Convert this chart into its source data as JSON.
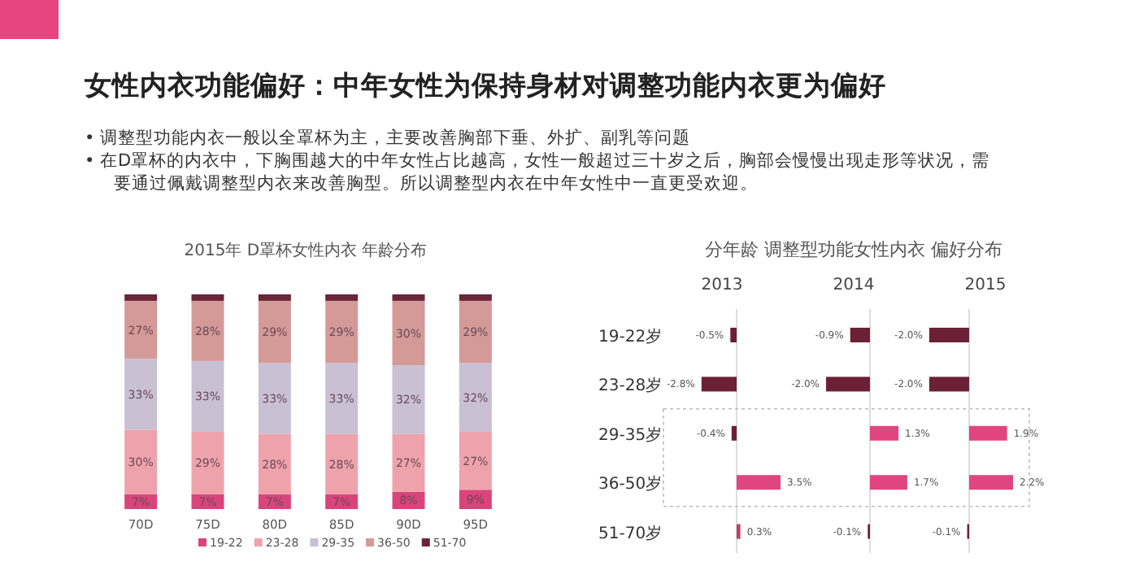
{
  "chart_data": [
    {
      "type": "other",
      "title": "女性内衣功能偏好：中年女性为保持身材对调整功能内衣更为偏好",
      "annotations": [
        "• 调整型功能内衣一般以全罩杯为主，主要改善胸部下垂、外扩、副乳等问题",
        "• 在D罩杯的内衣中，下胸围越大的中年女性占比越高，女性一般超过三十岁之后，胸部会慢慢出现走形等状况，需要通过佩戴调整型内衣来改善胸型。所以调整型内衣在中年女性中一直更受欢迎。"
      ]
    },
    {
      "type": "bar",
      "stacked": true,
      "title": "2015年 D罩杯女性内衣 年龄分布",
      "categories": [
        "70D",
        "75D",
        "80D",
        "85D",
        "90D",
        "95D"
      ],
      "legend": "bottom",
      "tick_labels": "x",
      "series": [
        {
          "name": "19-22",
          "color": "#d9457a",
          "values": [
            7,
            7,
            7,
            7,
            8,
            9
          ],
          "value_labels": [
            "7%",
            "7%",
            "7%",
            "7%",
            "8%",
            "9%"
          ]
        },
        {
          "name": "23-28",
          "color": "#eea3ac",
          "values": [
            30,
            29,
            28,
            28,
            27,
            27
          ],
          "value_labels": [
            "30%",
            "29%",
            "28%",
            "28%",
            "27%",
            "27%"
          ]
        },
        {
          "name": "29-35",
          "color": "#c9c0d3",
          "values": [
            33,
            33,
            33,
            33,
            32,
            32
          ],
          "value_labels": [
            "33%",
            "33%",
            "33%",
            "33%",
            "32%",
            "32%"
          ]
        },
        {
          "name": "36-50",
          "color": "#d49a98",
          "values": [
            27,
            28,
            29,
            29,
            30,
            29
          ],
          "value_labels": [
            "27%",
            "28%",
            "29%",
            "29%",
            "30%",
            "29%"
          ]
        },
        {
          "name": "51-70",
          "color": "#6b2438",
          "values": [
            3,
            3,
            3,
            3,
            3,
            3
          ]
        }
      ]
    },
    {
      "type": "other",
      "title": "分年龄 调整型功能女性内衣 偏好分布"
    },
    {
      "type": "bar",
      "orientation": "horizontal",
      "title": "2013",
      "categories": [
        "19-22岁",
        "23-28岁",
        "29-35岁",
        "36-50岁",
        "51-70岁"
      ],
      "tick_labels": "y",
      "values": [
        -0.5,
        -2.8,
        -0.4,
        3.5,
        0.3
      ],
      "value_labels": [
        "-0.5%",
        "-2.8%",
        "-0.4%",
        "3.5%",
        "0.3%"
      ],
      "colors": [
        "#6b2038",
        "#6b2038",
        "#6b2038",
        "#e0457f",
        "#c04070"
      ]
    },
    {
      "type": "bar",
      "orientation": "horizontal",
      "title": "2014",
      "values": [
        -0.9,
        -2.0,
        1.3,
        1.7,
        -0.1
      ],
      "value_labels": [
        "-0.9%",
        "-2.0%",
        "1.3%",
        "1.7%",
        "-0.1%"
      ],
      "colors": [
        "#6b2038",
        "#6b2038",
        "#e0457f",
        "#e0457f",
        "#6b2038"
      ]
    },
    {
      "type": "bar",
      "orientation": "horizontal",
      "title": "2015",
      "values": [
        -2.0,
        -2.0,
        1.9,
        2.2,
        -0.1
      ],
      "value_labels": [
        "-2.0%",
        "-2.0%",
        "1.9%",
        "2.2%",
        "-0.1%"
      ],
      "colors": [
        "#6b2038",
        "#6b2038",
        "#e0457f",
        "#e0457f",
        "#6b2038"
      ]
    }
  ]
}
